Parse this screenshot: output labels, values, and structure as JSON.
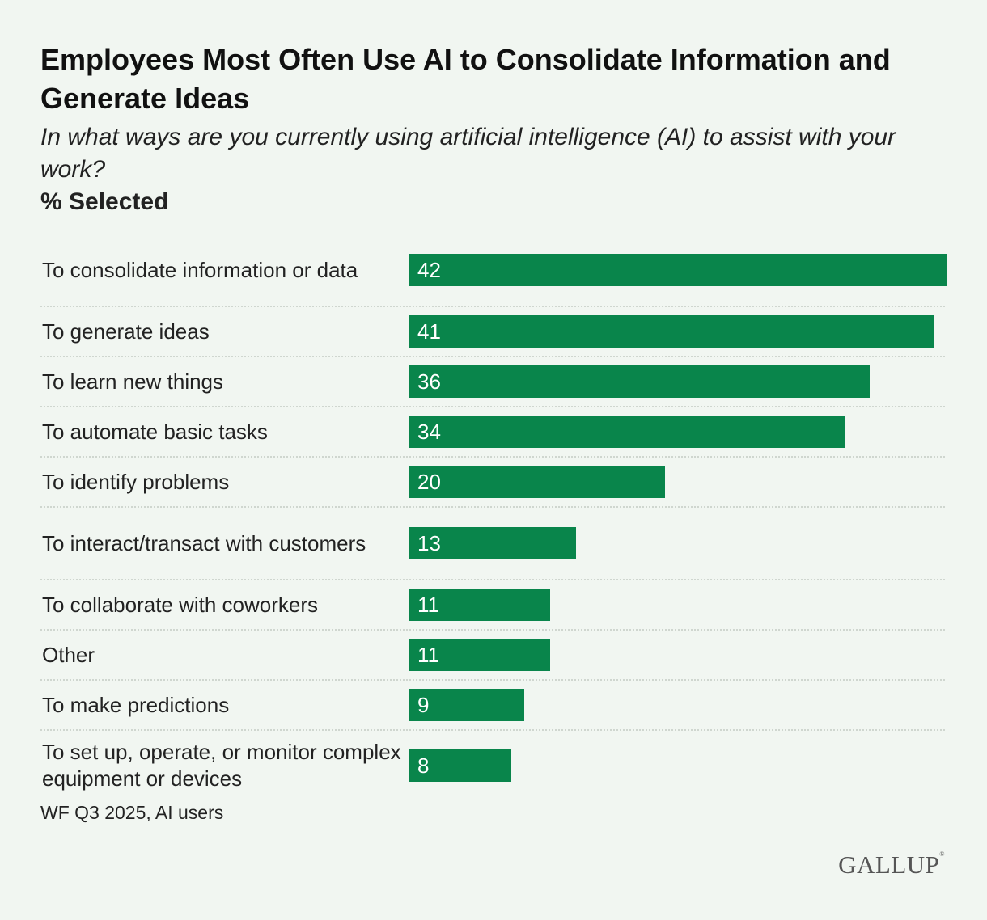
{
  "chart_data": {
    "type": "bar",
    "orientation": "horizontal",
    "title": "Employees Most Often Use AI to Consolidate Information and Generate Ideas",
    "subtitle": "In what ways are you currently using artificial intelligence (AI) to assist with your work?",
    "unit_label": "% Selected",
    "categories": [
      "To consolidate information or data",
      "To generate ideas",
      "To learn new things",
      "To automate basic tasks",
      "To identify problems",
      "To interact/transact with customers",
      "To collaborate with coworkers",
      "Other",
      "To make predictions",
      "To set up, operate, or monitor complex equipment or devices"
    ],
    "values": [
      42,
      41,
      36,
      34,
      20,
      13,
      11,
      11,
      9,
      8
    ],
    "xlim": [
      0,
      42
    ],
    "bar_color": "#09854b",
    "grid": false,
    "source": "WF Q3 2025, AI users"
  },
  "logo": "GALLUP"
}
